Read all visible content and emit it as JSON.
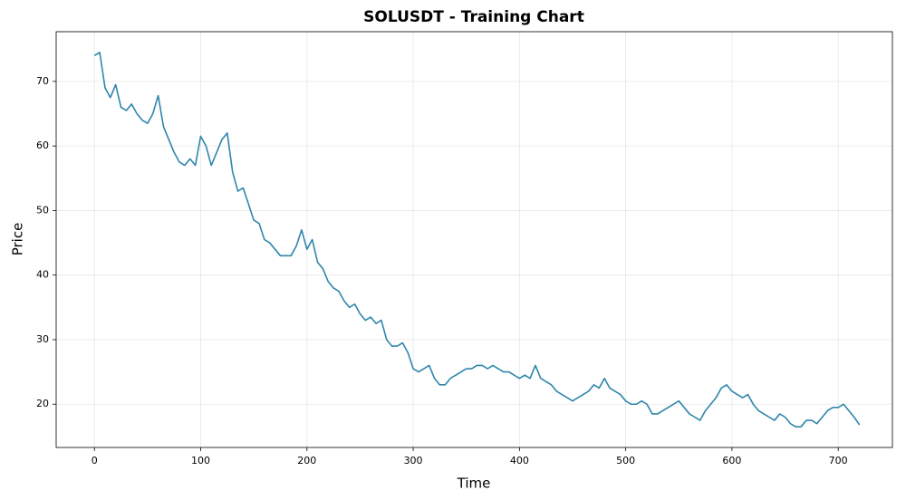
{
  "chart_data": {
    "type": "line",
    "title": "SOLUSDT - Training Chart",
    "x_label": "Time",
    "y_label": "Price",
    "xlim": [
      -36,
      751
    ],
    "ylim": [
      13.3,
      77.7
    ],
    "xticks": [
      0,
      100,
      200,
      300,
      400,
      500,
      600,
      700
    ],
    "yticks": [
      20,
      30,
      40,
      50,
      60,
      70
    ],
    "grid": true,
    "x": [
      0,
      5,
      10,
      15,
      20,
      25,
      30,
      35,
      40,
      45,
      50,
      55,
      60,
      65,
      70,
      75,
      80,
      85,
      90,
      95,
      100,
      105,
      110,
      115,
      120,
      125,
      130,
      135,
      140,
      145,
      150,
      155,
      160,
      165,
      170,
      175,
      180,
      185,
      190,
      195,
      200,
      205,
      210,
      215,
      220,
      225,
      230,
      235,
      240,
      245,
      250,
      255,
      260,
      265,
      270,
      275,
      280,
      285,
      290,
      295,
      300,
      305,
      310,
      315,
      320,
      325,
      330,
      335,
      340,
      345,
      350,
      355,
      360,
      365,
      370,
      375,
      380,
      385,
      390,
      395,
      400,
      405,
      410,
      415,
      420,
      425,
      430,
      435,
      440,
      445,
      450,
      455,
      460,
      465,
      470,
      475,
      480,
      485,
      490,
      495,
      500,
      505,
      510,
      515,
      520,
      525,
      530,
      535,
      540,
      545,
      550,
      555,
      560,
      565,
      570,
      575,
      580,
      585,
      590,
      595,
      600,
      605,
      610,
      615,
      620,
      625,
      630,
      635,
      640,
      645,
      650,
      655,
      660,
      665,
      670,
      675,
      680,
      685,
      690,
      695,
      700,
      705,
      710,
      715,
      720
    ],
    "series": [
      {
        "name": "SOLUSDT",
        "color": "#2e86ab",
        "values": [
          74,
          74.5,
          69,
          67.5,
          69.5,
          66,
          65.5,
          66.5,
          65,
          64,
          63.5,
          65,
          67.8,
          63,
          61,
          59,
          57.5,
          57,
          58,
          57,
          61.5,
          60,
          57,
          59,
          61,
          62,
          56,
          53,
          53.5,
          51,
          48.5,
          48,
          45.5,
          45,
          44,
          43,
          43,
          43,
          44.5,
          47,
          44,
          45.5,
          42,
          41,
          39,
          38,
          37.5,
          36,
          35,
          35.5,
          34,
          33,
          33.5,
          32.5,
          33,
          30,
          29,
          29,
          29.5,
          28,
          25.5,
          25,
          25.5,
          26,
          24,
          23,
          23,
          24,
          24.5,
          25,
          25.5,
          25.5,
          26,
          26,
          25.5,
          26,
          25.5,
          25,
          25,
          24.5,
          24,
          24.5,
          24,
          26,
          24,
          23.5,
          23,
          22,
          21.5,
          21,
          20.5,
          21,
          21.5,
          22,
          23,
          22.5,
          24,
          22.5,
          22,
          21.5,
          20.5,
          20,
          20,
          20.5,
          20,
          18.5,
          18.5,
          19,
          19.5,
          20,
          20.5,
          19.5,
          18.5,
          18,
          17.5,
          19,
          20,
          21,
          22.5,
          23,
          22,
          21.5,
          21,
          21.5,
          20,
          19,
          18.5,
          18,
          17.5,
          18.5,
          18,
          17,
          16.5,
          16.5,
          17.5,
          17.5,
          17,
          18,
          19,
          19.5,
          19.5,
          20,
          19,
          18,
          16.8
        ]
      }
    ]
  }
}
